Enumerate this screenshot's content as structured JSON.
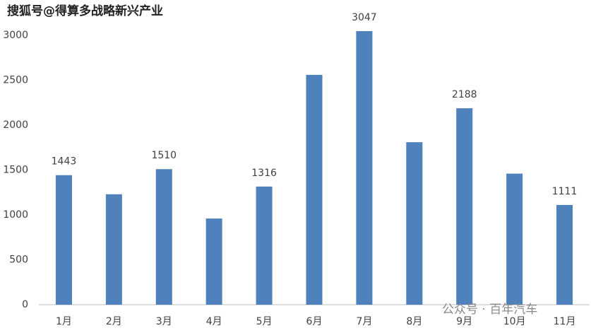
{
  "chart_data": {
    "type": "bar",
    "watermark_top": "搜狐号@得算多战略新兴产业",
    "watermark_bottom": "公众号 · 百年汽车",
    "categories": [
      "1月",
      "2月",
      "3月",
      "4月",
      "5月",
      "6月",
      "7月",
      "8月",
      "9月",
      "10月",
      "11月"
    ],
    "values": [
      1443,
      1230,
      1510,
      960,
      1316,
      2560,
      3047,
      1810,
      2188,
      1460,
      1111
    ],
    "value_labels": [
      "1443",
      null,
      "1510",
      null,
      "1316",
      null,
      "3047",
      null,
      "2188",
      null,
      "1111"
    ],
    "color": "#4f81bd",
    "ylim": [
      0,
      3000
    ],
    "yticks": [
      0,
      500,
      1000,
      1500,
      2000,
      2500,
      3000
    ],
    "grid": false
  }
}
